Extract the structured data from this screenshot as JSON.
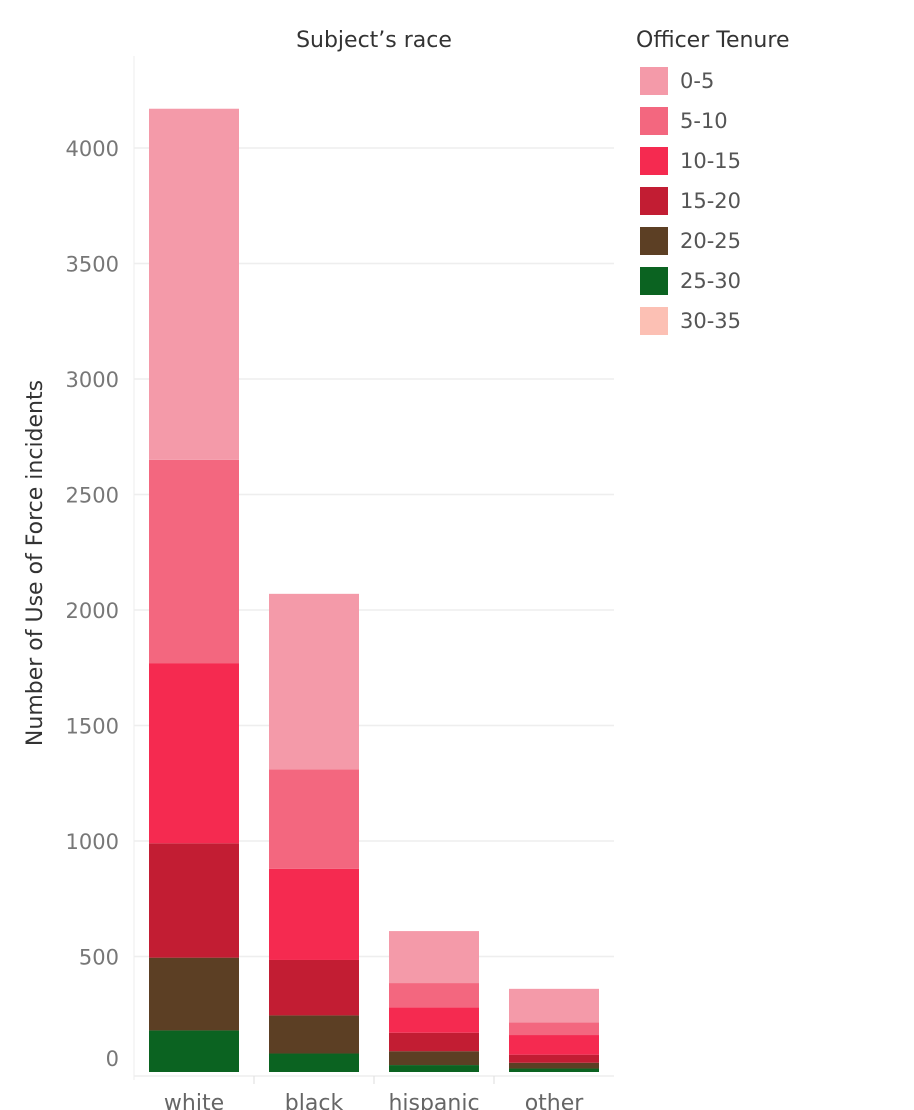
{
  "chart_data": {
    "type": "bar",
    "stacked": true,
    "title": "Subject’s race",
    "xlabel": "",
    "ylabel": "Number of Use of Force incidents",
    "categories": [
      "white",
      "black",
      "hispanic",
      "other"
    ],
    "ylim": [
      0,
      4300
    ],
    "yticks": [
      0,
      500,
      1000,
      1500,
      2000,
      2500,
      3000,
      3500,
      4000
    ],
    "grid": true,
    "legend": {
      "title": "Officer Tenure",
      "placement": "top-right"
    },
    "series": [
      {
        "name": "0-5",
        "color": "#f49aa9",
        "values": [
          1520,
          760,
          225,
          145
        ]
      },
      {
        "name": "5-10",
        "color": "#f3677f",
        "values": [
          880,
          430,
          105,
          55
        ]
      },
      {
        "name": "10-15",
        "color": "#f52a50",
        "values": [
          780,
          395,
          110,
          85
        ]
      },
      {
        "name": "15-20",
        "color": "#c21d33",
        "values": [
          495,
          240,
          80,
          35
        ]
      },
      {
        "name": "20-25",
        "color": "#5c3f24",
        "values": [
          315,
          165,
          60,
          25
        ]
      },
      {
        "name": "25-30",
        "color": "#0b6321",
        "values": [
          180,
          80,
          30,
          15
        ]
      },
      {
        "name": "30-35",
        "color": "#fcc0b4",
        "values": [
          0,
          0,
          0,
          0
        ]
      }
    ]
  }
}
